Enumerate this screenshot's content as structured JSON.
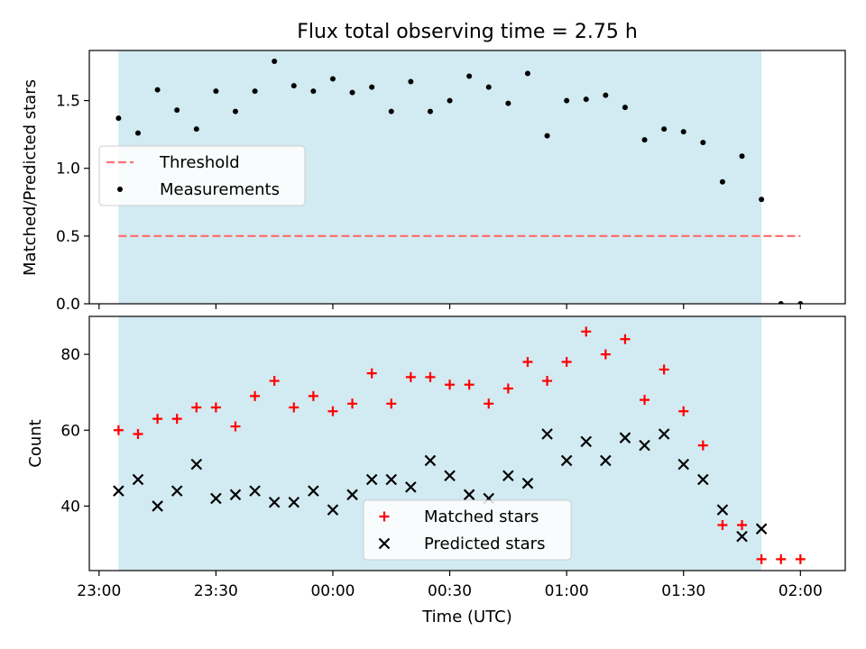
{
  "chart_data": {
    "type": "scatter",
    "title": "Flux total observing time = 2.75 h",
    "xlabel": "Time (UTC)",
    "x_ticks": [
      "23:00",
      "23:30",
      "00:00",
      "00:30",
      "01:00",
      "01:30",
      "02:00"
    ],
    "shaded_interval": [
      "23:05",
      "01:50"
    ],
    "shade_color": "#add8e6",
    "panels": [
      {
        "ylabel": "Matched/Predicted stars",
        "ylim": [
          0.0,
          1.87
        ],
        "y_ticks": [
          "0.0",
          "0.5",
          "1.0",
          "1.5"
        ],
        "legend": {
          "placement": "center-left",
          "entries": [
            "Threshold",
            "Measurements"
          ]
        },
        "threshold": {
          "name": "Threshold",
          "value": 0.5,
          "x_start": "23:05",
          "x_end": "02:00",
          "color": "#ff7070"
        },
        "series": [
          {
            "name": "Measurements",
            "marker": "dot",
            "color": "#000000",
            "x": [
              "23:05",
              "23:10",
              "23:15",
              "23:20",
              "23:25",
              "23:30",
              "23:35",
              "23:40",
              "23:45",
              "23:50",
              "23:55",
              "00:00",
              "00:05",
              "00:10",
              "00:15",
              "00:20",
              "00:25",
              "00:30",
              "00:35",
              "00:40",
              "00:45",
              "00:50",
              "00:55",
              "01:00",
              "01:05",
              "01:10",
              "01:15",
              "01:20",
              "01:25",
              "01:30",
              "01:35",
              "01:40",
              "01:45",
              "01:50",
              "01:55",
              "02:00"
            ],
            "y": [
              1.37,
              1.26,
              1.58,
              1.43,
              1.29,
              1.57,
              1.42,
              1.57,
              1.79,
              1.61,
              1.57,
              1.66,
              1.56,
              1.6,
              1.42,
              1.64,
              1.42,
              1.5,
              1.68,
              1.6,
              1.48,
              1.7,
              1.24,
              1.5,
              1.51,
              1.54,
              1.45,
              1.21,
              1.29,
              1.27,
              1.19,
              0.9,
              1.09,
              0.77,
              0.0,
              0.0
            ]
          }
        ]
      },
      {
        "ylabel": "Count",
        "ylim": [
          23,
          90
        ],
        "y_ticks": [
          "40",
          "60",
          "80"
        ],
        "legend": {
          "placement": "lower-center",
          "entries": [
            "Matched stars",
            "Predicted stars"
          ]
        },
        "series": [
          {
            "name": "Matched stars",
            "marker": "plus",
            "color": "#ff0000",
            "x": [
              "23:05",
              "23:10",
              "23:15",
              "23:20",
              "23:25",
              "23:30",
              "23:35",
              "23:40",
              "23:45",
              "23:50",
              "23:55",
              "00:00",
              "00:05",
              "00:10",
              "00:15",
              "00:20",
              "00:25",
              "00:30",
              "00:35",
              "00:40",
              "00:45",
              "00:50",
              "00:55",
              "01:00",
              "01:05",
              "01:10",
              "01:15",
              "01:20",
              "01:25",
              "01:30",
              "01:35",
              "01:40",
              "01:45",
              "01:50",
              "01:55",
              "02:00"
            ],
            "y": [
              60,
              59,
              63,
              63,
              66,
              66,
              61,
              69,
              73,
              66,
              69,
              65,
              67,
              75,
              67,
              74,
              74,
              72,
              72,
              67,
              71,
              78,
              73,
              78,
              86,
              80,
              84,
              68,
              76,
              65,
              56,
              35,
              35,
              26,
              26,
              26
            ]
          },
          {
            "name": "Predicted stars",
            "marker": "x",
            "color": "#000000",
            "x": [
              "23:05",
              "23:10",
              "23:15",
              "23:20",
              "23:25",
              "23:30",
              "23:35",
              "23:40",
              "23:45",
              "23:50",
              "23:55",
              "00:00",
              "00:05",
              "00:10",
              "00:15",
              "00:20",
              "00:25",
              "00:30",
              "00:35",
              "00:40",
              "00:45",
              "00:50",
              "00:55",
              "01:00",
              "01:05",
              "01:10",
              "01:15",
              "01:20",
              "01:25",
              "01:30",
              "01:35",
              "01:40",
              "01:45",
              "01:50"
            ],
            "y": [
              44,
              47,
              40,
              44,
              51,
              42,
              43,
              44,
              41,
              41,
              44,
              39,
              43,
              47,
              47,
              45,
              52,
              48,
              43,
              42,
              48,
              46,
              59,
              52,
              57,
              52,
              58,
              56,
              59,
              51,
              47,
              39,
              32,
              34
            ]
          }
        ]
      }
    ]
  }
}
